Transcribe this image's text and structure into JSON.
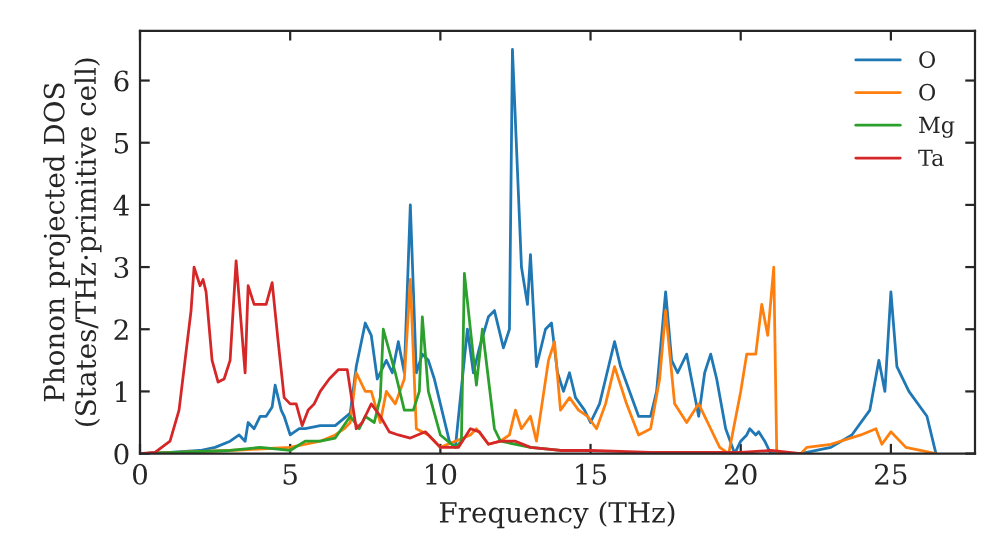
{
  "chart_data": {
    "type": "line",
    "xlabel": "Frequency (THz)",
    "ylabel": "Phonon projected DOS\n(States/THz·primitive cell)",
    "xlim": [
      0,
      27.8
    ],
    "ylim": [
      0,
      6.8
    ],
    "xticks": [
      0,
      5,
      10,
      15,
      20,
      25
    ],
    "yticks": [
      0,
      1,
      2,
      3,
      4,
      5,
      6
    ],
    "grid": false,
    "legend": "top right",
    "series": [
      {
        "name": "O",
        "color": "#1f77b4",
        "x": [
          0,
          1,
          2,
          2.5,
          3,
          3.3,
          3.5,
          3.6,
          3.8,
          4,
          4.2,
          4.4,
          4.5,
          4.7,
          4.8,
          5,
          5.3,
          5.5,
          6,
          6.5,
          7,
          7.2,
          7.5,
          7.7,
          7.9,
          8.2,
          8.4,
          8.6,
          8.8,
          9,
          9.2,
          9.4,
          9.6,
          9.8,
          10,
          10.3,
          10.5,
          10.9,
          11.1,
          11.3,
          11.6,
          11.8,
          12.1,
          12.3,
          12.4,
          12.7,
          12.9,
          13,
          13.2,
          13.5,
          13.7,
          13.9,
          14.1,
          14.3,
          14.5,
          14.8,
          15,
          15.3,
          15.5,
          15.8,
          16,
          16.3,
          16.6,
          17,
          17.2,
          17.5,
          17.7,
          17.9,
          18.2,
          18.4,
          18.6,
          18.8,
          19,
          19.2,
          19.5,
          19.8,
          20,
          20.2,
          20.3,
          20.5,
          20.6,
          20.8,
          21,
          22,
          23,
          23.7,
          24.3,
          24.6,
          24.8,
          25,
          25.2,
          25.6,
          26.2,
          26.5
        ],
        "values": [
          0,
          0.02,
          0.05,
          0.1,
          0.2,
          0.3,
          0.2,
          0.5,
          0.4,
          0.6,
          0.6,
          0.75,
          1.1,
          0.7,
          0.6,
          0.3,
          0.4,
          0.4,
          0.45,
          0.45,
          0.65,
          1.4,
          2.1,
          1.9,
          1.2,
          1.5,
          1.3,
          1.8,
          1.3,
          4.0,
          1.3,
          1.6,
          1.5,
          1.2,
          0.8,
          0.2,
          0.1,
          2.0,
          1.3,
          1.7,
          2.2,
          2.3,
          1.7,
          2.0,
          6.5,
          3.0,
          2.4,
          3.2,
          1.4,
          2.0,
          2.1,
          1.3,
          1.0,
          1.3,
          0.9,
          0.7,
          0.5,
          0.8,
          1.2,
          1.8,
          1.4,
          1.0,
          0.6,
          0.6,
          1.0,
          2.6,
          1.5,
          1.3,
          1.6,
          1.1,
          0.6,
          1.3,
          1.6,
          1.2,
          0.4,
          0,
          0.2,
          0.3,
          0.4,
          0.3,
          0.35,
          0.2,
          0,
          0,
          0.1,
          0.3,
          0.7,
          1.5,
          1.0,
          2.6,
          1.4,
          1.0,
          0.6,
          0
        ]
      },
      {
        "name": "O",
        "color": "#ff7f0e",
        "x": [
          0,
          3,
          5,
          6,
          6.5,
          6.8,
          7,
          7.2,
          7.5,
          7.7,
          8,
          8.2,
          8.5,
          8.8,
          9,
          9.2,
          9.6,
          10,
          10.5,
          11,
          11.2,
          11.6,
          12,
          12.3,
          12.5,
          12.7,
          13,
          13.2,
          13.6,
          13.8,
          14,
          14.3,
          14.6,
          14.9,
          15.2,
          15.5,
          15.8,
          16.2,
          16.6,
          17,
          17.3,
          17.5,
          17.8,
          18.2,
          18.6,
          19,
          19.3,
          19.6,
          20,
          20.2,
          20.5,
          20.7,
          20.9,
          21.1,
          21.2,
          22,
          22.2,
          23,
          24,
          24.5,
          24.7,
          25,
          25.5,
          26.5
        ],
        "values": [
          0,
          0.05,
          0.1,
          0.2,
          0.3,
          0.4,
          0.5,
          1.3,
          1.0,
          1.0,
          0.5,
          1.0,
          0.8,
          1.2,
          2.8,
          0.4,
          0.3,
          0.1,
          0.2,
          0.3,
          0.4,
          0.15,
          0.2,
          0.3,
          0.7,
          0.4,
          0.6,
          0.2,
          1.5,
          1.8,
          0.7,
          0.9,
          0.7,
          0.6,
          0.4,
          0.8,
          1.4,
          0.8,
          0.3,
          0.4,
          1.2,
          2.3,
          0.8,
          0.5,
          0.8,
          0.4,
          0.1,
          0,
          1.0,
          1.6,
          1.6,
          2.4,
          1.9,
          3.0,
          0,
          0,
          0.1,
          0.15,
          0.3,
          0.4,
          0.15,
          0.35,
          0.1,
          0
        ]
      },
      {
        "name": "Mg",
        "color": "#2ca02c",
        "x": [
          0,
          3,
          4,
          5,
          5.5,
          6,
          6.5,
          7,
          7.3,
          7.5,
          7.8,
          8,
          8.1,
          8.5,
          8.8,
          9.1,
          9.3,
          9.4,
          9.6,
          10,
          10.5,
          10.7,
          10.8,
          11.2,
          11.4,
          11.8,
          12,
          13,
          14
        ],
        "values": [
          0,
          0.05,
          0.1,
          0.05,
          0.2,
          0.2,
          0.25,
          0.6,
          0.4,
          0.6,
          0.5,
          0.9,
          2.0,
          1.3,
          0.7,
          0.7,
          1.0,
          2.2,
          1.0,
          0.3,
          0.1,
          0.2,
          2.9,
          1.1,
          2.0,
          0.4,
          0.2,
          0.1,
          0.05
        ]
      },
      {
        "name": "Ta",
        "color": "#d62728",
        "x": [
          0,
          0.5,
          1,
          1.3,
          1.5,
          1.7,
          1.8,
          2,
          2.1,
          2.2,
          2.4,
          2.6,
          2.8,
          3,
          3.2,
          3.5,
          3.6,
          3.8,
          4,
          4.2,
          4.4,
          4.6,
          4.8,
          5,
          5.2,
          5.4,
          5.6,
          5.8,
          6,
          6.3,
          6.6,
          6.9,
          7.2,
          7.4,
          7.7,
          8,
          8.3,
          8.6,
          9,
          9.5,
          10,
          10.6,
          11,
          11.3,
          11.6,
          12,
          12.5,
          13,
          14,
          15,
          17,
          20,
          21,
          22
        ],
        "values": [
          0,
          0.02,
          0.2,
          0.7,
          1.5,
          2.3,
          3.0,
          2.7,
          2.8,
          2.6,
          1.5,
          1.15,
          1.2,
          1.5,
          3.1,
          1.3,
          2.7,
          2.4,
          2.4,
          2.4,
          2.75,
          1.8,
          0.9,
          0.8,
          0.8,
          0.45,
          0.7,
          0.8,
          1.0,
          1.2,
          1.35,
          1.35,
          0.4,
          0.5,
          0.8,
          0.6,
          0.35,
          0.3,
          0.25,
          0.35,
          0.1,
          0.1,
          0.4,
          0.35,
          0.15,
          0.2,
          0.2,
          0.1,
          0.05,
          0.05,
          0.02,
          0.02,
          0.05,
          0
        ]
      }
    ]
  }
}
